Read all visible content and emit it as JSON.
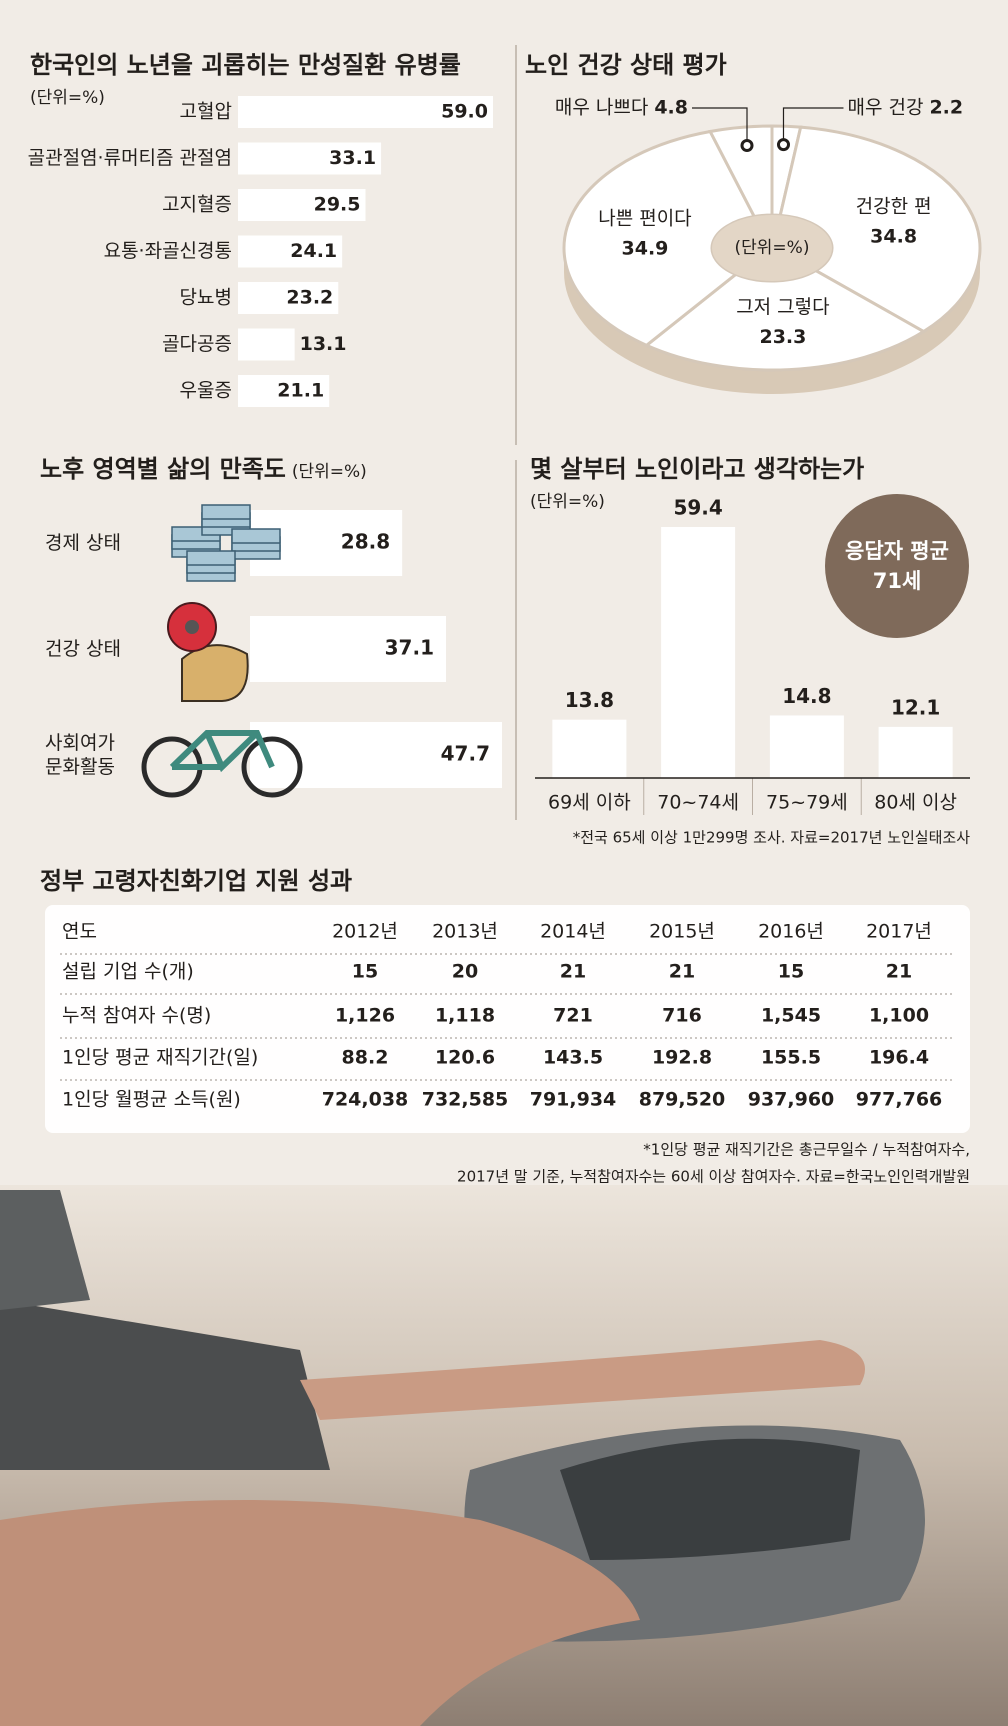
{
  "chart_data": [
    {
      "type": "hbar",
      "title": "한국인의 노년을 괴롭히는 만성질환 유병률",
      "unit": "(단위=%)",
      "categories": [
        "고혈압",
        "골관절염·류머티즘 관절염",
        "고지혈증",
        "요통·좌골신경통",
        "당뇨병",
        "골다공증",
        "우울증"
      ],
      "values": [
        59.0,
        33.1,
        29.5,
        24.1,
        23.2,
        13.1,
        21.1
      ],
      "value_labels": [
        "59.0",
        "33.1",
        "29.5",
        "24.1",
        "23.2",
        "13.1",
        "21.1"
      ],
      "color": "#ffffff"
    },
    {
      "type": "pie",
      "title": "노인 건강 상태 평가",
      "unit": "(단위=%)",
      "categories": [
        "매우 건강",
        "건강한 편",
        "그저 그렇다",
        "나쁜 편이다",
        "매우 나쁘다"
      ],
      "values": [
        2.2,
        34.8,
        23.3,
        34.9,
        4.8
      ],
      "color": "#ffffff"
    },
    {
      "type": "iconbar",
      "title": "노후 영역별 삶의 만족도",
      "unit": "(단위=%)",
      "categories": [
        "경제 상태",
        "건강 상태",
        "사회여가\n문화활동"
      ],
      "values": [
        28.8,
        37.1,
        47.7
      ],
      "color": "#ffffff"
    },
    {
      "type": "bar",
      "title": "몇 살부터 노인이라고 생각하는가",
      "unit": "(단위=%)",
      "categories": [
        "69세 이하",
        "70~74세",
        "75~79세",
        "80세 이상"
      ],
      "values": [
        13.8,
        59.4,
        14.8,
        12.1
      ],
      "color": "#ffffff",
      "annotation": [
        "응답자 평균",
        "71세"
      ],
      "note": "*전국 65세 이상 1만299명 조사. 자료=2017년 노인실태조사"
    }
  ],
  "table": {
    "title": "정부 고령자친화기업 지원 성과",
    "header": [
      "연도",
      "2012년",
      "2013년",
      "2014년",
      "2015년",
      "2016년",
      "2017년"
    ],
    "rows": [
      [
        "설립 기업 수(개)",
        "15",
        "20",
        "21",
        "21",
        "15",
        "21"
      ],
      [
        "누적 참여자 수(명)",
        "1,126",
        "1,118",
        "721",
        "716",
        "1,545",
        "1,100"
      ],
      [
        "1인당 평균 재직기간(일)",
        "88.2",
        "120.6",
        "143.5",
        "192.8",
        "155.5",
        "196.4"
      ],
      [
        "1인당 월평균 소득(원)",
        "724,038",
        "732,585",
        "791,934",
        "879,520",
        "937,960",
        "977,766"
      ]
    ],
    "notes": [
      "*1인당 평균 재직기간은 총근무일수 / 누적참여자수,",
      "2017년 말 기준, 누적참여자수는 60세 이상 참여자수. 자료=한국노인인력개발원"
    ]
  }
}
